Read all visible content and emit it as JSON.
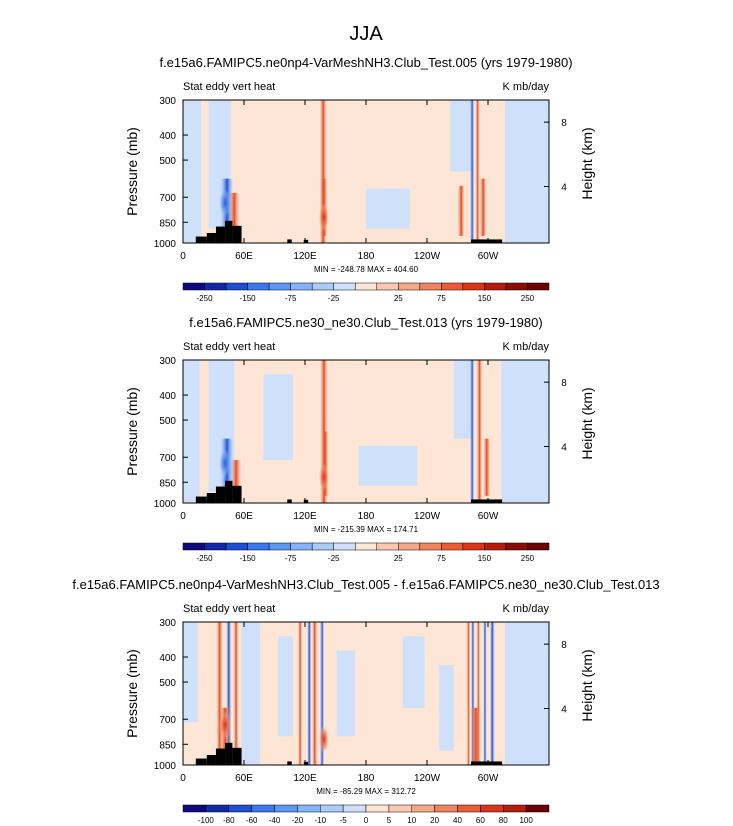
{
  "title": "JJA",
  "colors": {
    "ocean": "#fde6d6",
    "black": "#000000"
  },
  "chart_data": [
    {
      "type": "heatmap",
      "title": "f.e15a6.FAMIPC5.ne0np4-VarMeshNH3.Club_Test.005 (yrs 1979-1980)",
      "left_label": "Stat eddy vert heat",
      "right_label": "K mb/day",
      "ylabel": "Pressure (mb)",
      "ylabel_right": "Height (km)",
      "x_ticks": [
        "0",
        "60E",
        "120E",
        "180",
        "120W",
        "60W"
      ],
      "y_ticks": [
        "300",
        "400",
        "500",
        "700",
        "850",
        "1000"
      ],
      "y_right_ticks": [
        "8",
        "4"
      ],
      "stats": "MIN = -248.78   MAX = 404.60",
      "colorbar_labels": [
        "-250",
        "-150",
        "-75",
        "-25",
        "25",
        "75",
        "150",
        "250"
      ],
      "levels": [
        -250,
        -200,
        -150,
        -100,
        -75,
        -50,
        -25,
        -10,
        10,
        25,
        50,
        75,
        100,
        150,
        200,
        250
      ],
      "colorbar_colors": [
        "#0c0a7e",
        "#1128a8",
        "#1c4fd3",
        "#3a78ee",
        "#5e98f5",
        "#85b5f8",
        "#abcbf9",
        "#cfe0fa",
        "#fde6d6",
        "#f9c8b1",
        "#f5a887",
        "#f18460",
        "#ec5c34",
        "#da3616",
        "#b81c0a",
        "#8c0c05",
        "#6b0303"
      ]
    },
    {
      "type": "heatmap",
      "title": "f.e15a6.FAMIPC5.ne30_ne30.Club_Test.013 (yrs 1979-1980)",
      "left_label": "Stat eddy vert heat",
      "right_label": "K mb/day",
      "ylabel": "Pressure (mb)",
      "ylabel_right": "Height (km)",
      "x_ticks": [
        "0",
        "60E",
        "120E",
        "180",
        "120W",
        "60W"
      ],
      "y_ticks": [
        "300",
        "400",
        "500",
        "700",
        "850",
        "1000"
      ],
      "y_right_ticks": [
        "8",
        "4"
      ],
      "stats": "MIN = -215.39   MAX = 174.71",
      "colorbar_labels": [
        "-250",
        "-150",
        "-75",
        "-25",
        "25",
        "75",
        "150",
        "250"
      ],
      "levels": [
        -250,
        -200,
        -150,
        -100,
        -75,
        -50,
        -25,
        -10,
        10,
        25,
        50,
        75,
        100,
        150,
        200,
        250
      ],
      "colorbar_colors": [
        "#0c0a7e",
        "#1128a8",
        "#1c4fd3",
        "#3a78ee",
        "#5e98f5",
        "#85b5f8",
        "#abcbf9",
        "#cfe0fa",
        "#fde6d6",
        "#f9c8b1",
        "#f5a887",
        "#f18460",
        "#ec5c34",
        "#da3616",
        "#b81c0a",
        "#8c0c05",
        "#6b0303"
      ]
    },
    {
      "type": "heatmap",
      "title": "f.e15a6.FAMIPC5.ne0np4-VarMeshNH3.Club_Test.005 - f.e15a6.FAMIPC5.ne30_ne30.Club_Test.013",
      "left_label": "Stat eddy vert heat",
      "right_label": "K mb/day",
      "ylabel": "Pressure (mb)",
      "ylabel_right": "Height (km)",
      "x_ticks": [
        "0",
        "60E",
        "120E",
        "180",
        "120W",
        "60W"
      ],
      "y_ticks": [
        "300",
        "400",
        "500",
        "700",
        "850",
        "1000"
      ],
      "y_right_ticks": [
        "8",
        "4"
      ],
      "stats": "MIN = -85.29   MAX = 312.72",
      "colorbar_labels": [
        "-100",
        "-80",
        "-60",
        "-40",
        "-20",
        "-10",
        "-5",
        "0",
        "5",
        "10",
        "20",
        "40",
        "60",
        "80",
        "100"
      ],
      "levels": [
        -100,
        -80,
        -60,
        -40,
        -20,
        -10,
        -5,
        0,
        5,
        10,
        20,
        40,
        60,
        80,
        100
      ],
      "colorbar_colors": [
        "#0c0a7e",
        "#1128a8",
        "#1c4fd3",
        "#3a78ee",
        "#5e98f5",
        "#85b5f8",
        "#abcbf9",
        "#cfe0fa",
        "#fde6d6",
        "#f9c8b1",
        "#f5a887",
        "#f18460",
        "#ec5c34",
        "#da3616",
        "#b81c0a",
        "#6b0303"
      ]
    }
  ]
}
